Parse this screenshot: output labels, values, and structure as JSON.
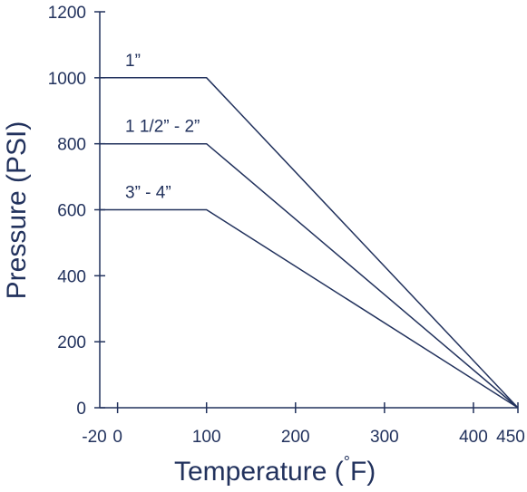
{
  "chart_data": {
    "type": "line",
    "title": "",
    "xlabel": "Temperature (",
    "xlabel_degree": "°",
    "xlabel_unit": "F)",
    "ylabel": "Pressure (PSI)",
    "xlim": [
      -20,
      450
    ],
    "ylim": [
      0,
      1200
    ],
    "x_ticks": [
      -20,
      0,
      100,
      200,
      300,
      400,
      450
    ],
    "x_tick_labels": [
      "-20",
      "0",
      "100",
      "200",
      "300",
      "400",
      "450"
    ],
    "y_ticks": [
      0,
      200,
      400,
      600,
      800,
      1000,
      1200
    ],
    "y_tick_labels": [
      "0",
      "200",
      "400",
      "600",
      "800",
      "1000",
      "1200"
    ],
    "grid": false,
    "legend": "none",
    "series": [
      {
        "name": "1”",
        "x": [
          -20,
          100,
          450
        ],
        "y": [
          1000,
          1000,
          0
        ]
      },
      {
        "name": "1 1/2” - 2”",
        "x": [
          -20,
          100,
          450
        ],
        "y": [
          800,
          800,
          0
        ]
      },
      {
        "name": "3” - 4”",
        "x": [
          -20,
          100,
          450
        ],
        "y": [
          600,
          600,
          0
        ]
      }
    ]
  },
  "colors": {
    "line": "#22325d",
    "text": "#22325d",
    "axis": "#22325d"
  }
}
